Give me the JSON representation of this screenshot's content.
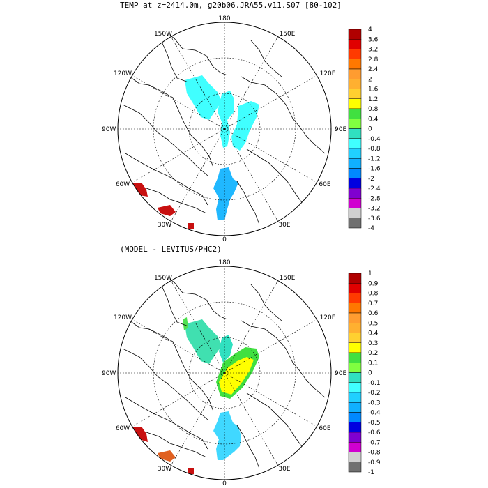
{
  "figure": {
    "title": "TEMP at z=2414.0m, g20b06.JRA55.v11.S07 [80-102]",
    "subtitle": "(MODEL - LEVITUS/PHC2)"
  },
  "maps": [
    {
      "id": "top",
      "lon_labels": {
        "top": "180",
        "upper_left": "150W",
        "upper_right": "150E",
        "mid_left_up": "120W",
        "mid_right_up": "120E",
        "left": "90W",
        "right": "90E",
        "lower_left": "60W",
        "lower_right": "60E",
        "bottom_left": "30W",
        "bottom_right": "30E",
        "bottom": "0"
      },
      "colorbar": {
        "labels": [
          "4",
          "3.6",
          "3.2",
          "2.8",
          "2.4",
          "2",
          "1.6",
          "1.2",
          "0.8",
          "0.4",
          "0",
          "-0.4",
          "-0.8",
          "-1.2",
          "-1.6",
          "-2",
          "-2.4",
          "-2.8",
          "-3.2",
          "-3.6",
          "-4"
        ],
        "colors": [
          "#b00000",
          "#e00000",
          "#ff3a00",
          "#ff7800",
          "#ff9c30",
          "#ffb030",
          "#ffd030",
          "#ffff00",
          "#40e040",
          "#80ff40",
          "#30e0c0",
          "#40ffff",
          "#20d0ff",
          "#10b0ff",
          "#0088ff",
          "#0000e0",
          "#8000d0",
          "#d000d0",
          "#d0d0d0",
          "#707070"
        ]
      }
    },
    {
      "id": "bottom",
      "lon_labels": {
        "top": "180",
        "upper_left": "150W",
        "upper_right": "150E",
        "mid_left_up": "120W",
        "mid_right_up": "120E",
        "left": "90W",
        "right": "90E",
        "lower_left": "60W",
        "lower_right": "60E",
        "bottom_left": "30W",
        "bottom_right": "30E",
        "bottom": "0"
      },
      "colorbar": {
        "labels": [
          "1",
          "0.9",
          "0.8",
          "0.7",
          "0.6",
          "0.5",
          "0.4",
          "0.3",
          "0.2",
          "0.1",
          "0",
          "-0.1",
          "-0.2",
          "-0.3",
          "-0.4",
          "-0.5",
          "-0.6",
          "-0.7",
          "-0.8",
          "-0.9",
          "-1"
        ],
        "colors": [
          "#b00000",
          "#e00000",
          "#ff3a00",
          "#ff7800",
          "#ff9c30",
          "#ffb030",
          "#ffd030",
          "#ffff00",
          "#40e040",
          "#80ff40",
          "#30e0c0",
          "#40ffff",
          "#20d0ff",
          "#10b0ff",
          "#0088ff",
          "#0000e0",
          "#8000d0",
          "#d000d0",
          "#d0d0d0",
          "#707070"
        ]
      }
    }
  ]
}
